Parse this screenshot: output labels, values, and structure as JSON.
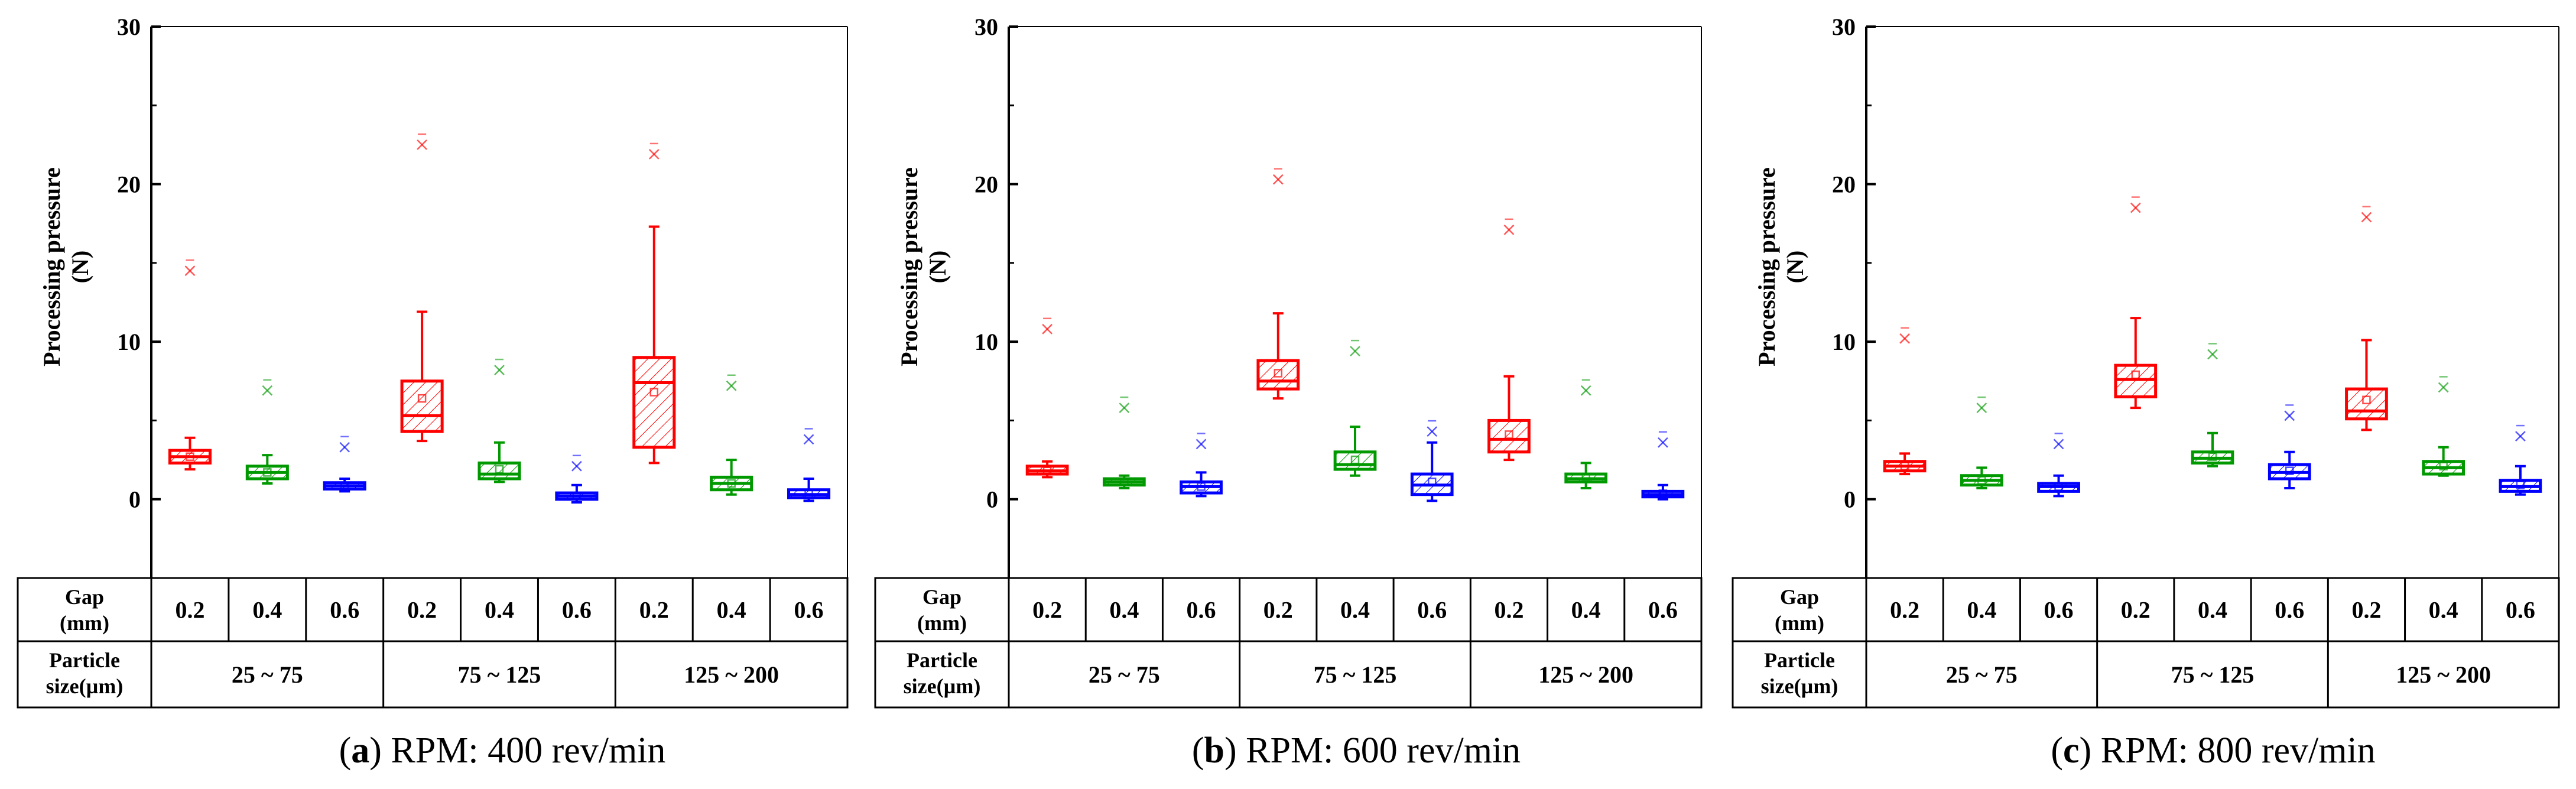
{
  "colors": {
    "red": "#ff0000",
    "green": "#009900",
    "blue": "#0000ff"
  },
  "table": {
    "gap_header": [
      "Gap",
      "(mm)"
    ],
    "particle_header": [
      "Particle",
      "size(µm)"
    ],
    "gaps": [
      "0.2",
      "0.4",
      "0.6",
      "0.2",
      "0.4",
      "0.6",
      "0.2",
      "0.4",
      "0.6"
    ],
    "sizes": [
      "25 ~ 75",
      "75 ~ 125",
      "125 ~ 200"
    ]
  },
  "chart_data": [
    {
      "type": "box",
      "caption_letter": "a",
      "caption_text": ") RPM: 400 rev/min",
      "ylabel": [
        "Processing pressure",
        "(N)"
      ],
      "ylim": [
        -5,
        30
      ],
      "yticks": [
        "0",
        "10",
        "20",
        "30"
      ],
      "ytick_values": [
        0,
        10,
        20,
        30
      ],
      "boxes": [
        {
          "q1": 2.3,
          "median": 2.7,
          "q3": 3.1,
          "min": 1.9,
          "max": 3.9,
          "mean": 2.7,
          "outliers": [
            14.5
          ]
        },
        {
          "q1": 1.3,
          "median": 1.7,
          "q3": 2.1,
          "min": 1.0,
          "max": 2.8,
          "mean": 1.7,
          "outliers": [
            6.9
          ]
        },
        {
          "q1": 0.65,
          "median": 0.85,
          "q3": 1.05,
          "min": 0.5,
          "max": 1.3,
          "mean": 0.85,
          "outliers": [
            3.3
          ]
        },
        {
          "q1": 4.3,
          "median": 5.3,
          "q3": 7.5,
          "min": 3.7,
          "max": 11.9,
          "mean": 6.4,
          "outliers": [
            22.5
          ]
        },
        {
          "q1": 1.3,
          "median": 1.6,
          "q3": 2.3,
          "min": 1.1,
          "max": 3.6,
          "mean": 1.9,
          "outliers": [
            8.2
          ]
        },
        {
          "q1": 0.0,
          "median": 0.2,
          "q3": 0.4,
          "min": -0.2,
          "max": 0.9,
          "mean": 0.2,
          "outliers": [
            2.1
          ]
        },
        {
          "q1": 3.3,
          "median": 7.4,
          "q3": 9.0,
          "min": 2.3,
          "max": 17.3,
          "mean": 6.8,
          "outliers": [
            21.9
          ]
        },
        {
          "q1": 0.6,
          "median": 1.0,
          "q3": 1.4,
          "min": 0.3,
          "max": 2.5,
          "mean": 1.0,
          "outliers": [
            7.2
          ]
        },
        {
          "q1": 0.1,
          "median": 0.3,
          "q3": 0.6,
          "min": -0.1,
          "max": 1.3,
          "mean": 0.35,
          "outliers": [
            3.8
          ]
        }
      ]
    },
    {
      "type": "box",
      "caption_letter": "b",
      "caption_text": ") RPM: 600 rev/min",
      "ylabel": [
        "Processing pressure",
        "(N)"
      ],
      "ylim": [
        -5,
        30
      ],
      "yticks": [
        "0",
        "10",
        "20",
        "30"
      ],
      "ytick_values": [
        0,
        10,
        20,
        30
      ],
      "boxes": [
        {
          "q1": 1.6,
          "median": 1.8,
          "q3": 2.1,
          "min": 1.4,
          "max": 2.4,
          "mean": 1.8,
          "outliers": [
            10.8
          ]
        },
        {
          "q1": 0.9,
          "median": 1.1,
          "q3": 1.3,
          "min": 0.7,
          "max": 1.5,
          "mean": 1.1,
          "outliers": [
            5.8
          ]
        },
        {
          "q1": 0.4,
          "median": 0.8,
          "q3": 1.1,
          "min": 0.2,
          "max": 1.7,
          "mean": 0.8,
          "outliers": [
            3.5
          ]
        },
        {
          "q1": 7.0,
          "median": 7.5,
          "q3": 8.8,
          "min": 6.4,
          "max": 11.8,
          "mean": 8.0,
          "outliers": [
            20.3
          ]
        },
        {
          "q1": 1.9,
          "median": 2.2,
          "q3": 3.0,
          "min": 1.5,
          "max": 4.6,
          "mean": 2.5,
          "outliers": [
            9.4
          ]
        },
        {
          "q1": 0.3,
          "median": 0.9,
          "q3": 1.6,
          "min": -0.1,
          "max": 3.6,
          "mean": 1.1,
          "outliers": [
            4.3
          ]
        },
        {
          "q1": 3.0,
          "median": 3.8,
          "q3": 5.0,
          "min": 2.5,
          "max": 7.8,
          "mean": 4.1,
          "outliers": [
            17.1
          ]
        },
        {
          "q1": 1.1,
          "median": 1.3,
          "q3": 1.6,
          "min": 0.7,
          "max": 2.3,
          "mean": 1.4,
          "outliers": [
            6.9
          ]
        },
        {
          "q1": 0.15,
          "median": 0.3,
          "q3": 0.5,
          "min": 0.0,
          "max": 0.9,
          "mean": 0.35,
          "outliers": [
            3.6
          ]
        }
      ]
    },
    {
      "type": "box",
      "caption_letter": "c",
      "caption_text": ") RPM: 800 rev/min",
      "ylabel": [
        "Processing pressure",
        "(N)"
      ],
      "ylim": [
        -5,
        30
      ],
      "yticks": [
        "0",
        "10",
        "20",
        "30"
      ],
      "ytick_values": [
        0,
        10,
        20,
        30
      ],
      "boxes": [
        {
          "q1": 1.8,
          "median": 2.1,
          "q3": 2.4,
          "min": 1.6,
          "max": 2.9,
          "mean": 2.1,
          "outliers": [
            10.2
          ]
        },
        {
          "q1": 0.9,
          "median": 1.2,
          "q3": 1.5,
          "min": 0.7,
          "max": 2.0,
          "mean": 1.2,
          "outliers": [
            5.8
          ]
        },
        {
          "q1": 0.5,
          "median": 0.8,
          "q3": 1.0,
          "min": 0.2,
          "max": 1.5,
          "mean": 0.8,
          "outliers": [
            3.5
          ]
        },
        {
          "q1": 6.5,
          "median": 7.6,
          "q3": 8.5,
          "min": 5.8,
          "max": 11.5,
          "mean": 7.9,
          "outliers": [
            18.5
          ]
        },
        {
          "q1": 2.3,
          "median": 2.6,
          "q3": 3.0,
          "min": 2.1,
          "max": 4.2,
          "mean": 2.7,
          "outliers": [
            9.2
          ]
        },
        {
          "q1": 1.3,
          "median": 1.7,
          "q3": 2.2,
          "min": 0.7,
          "max": 3.0,
          "mean": 1.8,
          "outliers": [
            5.3
          ]
        },
        {
          "q1": 5.1,
          "median": 5.6,
          "q3": 7.0,
          "min": 4.4,
          "max": 10.1,
          "mean": 6.3,
          "outliers": [
            17.9
          ]
        },
        {
          "q1": 1.6,
          "median": 2.0,
          "q3": 2.4,
          "min": 1.5,
          "max": 3.3,
          "mean": 2.1,
          "outliers": [
            7.1
          ]
        },
        {
          "q1": 0.5,
          "median": 0.8,
          "q3": 1.2,
          "min": 0.3,
          "max": 2.1,
          "mean": 0.9,
          "outliers": [
            4.0
          ]
        }
      ]
    }
  ]
}
